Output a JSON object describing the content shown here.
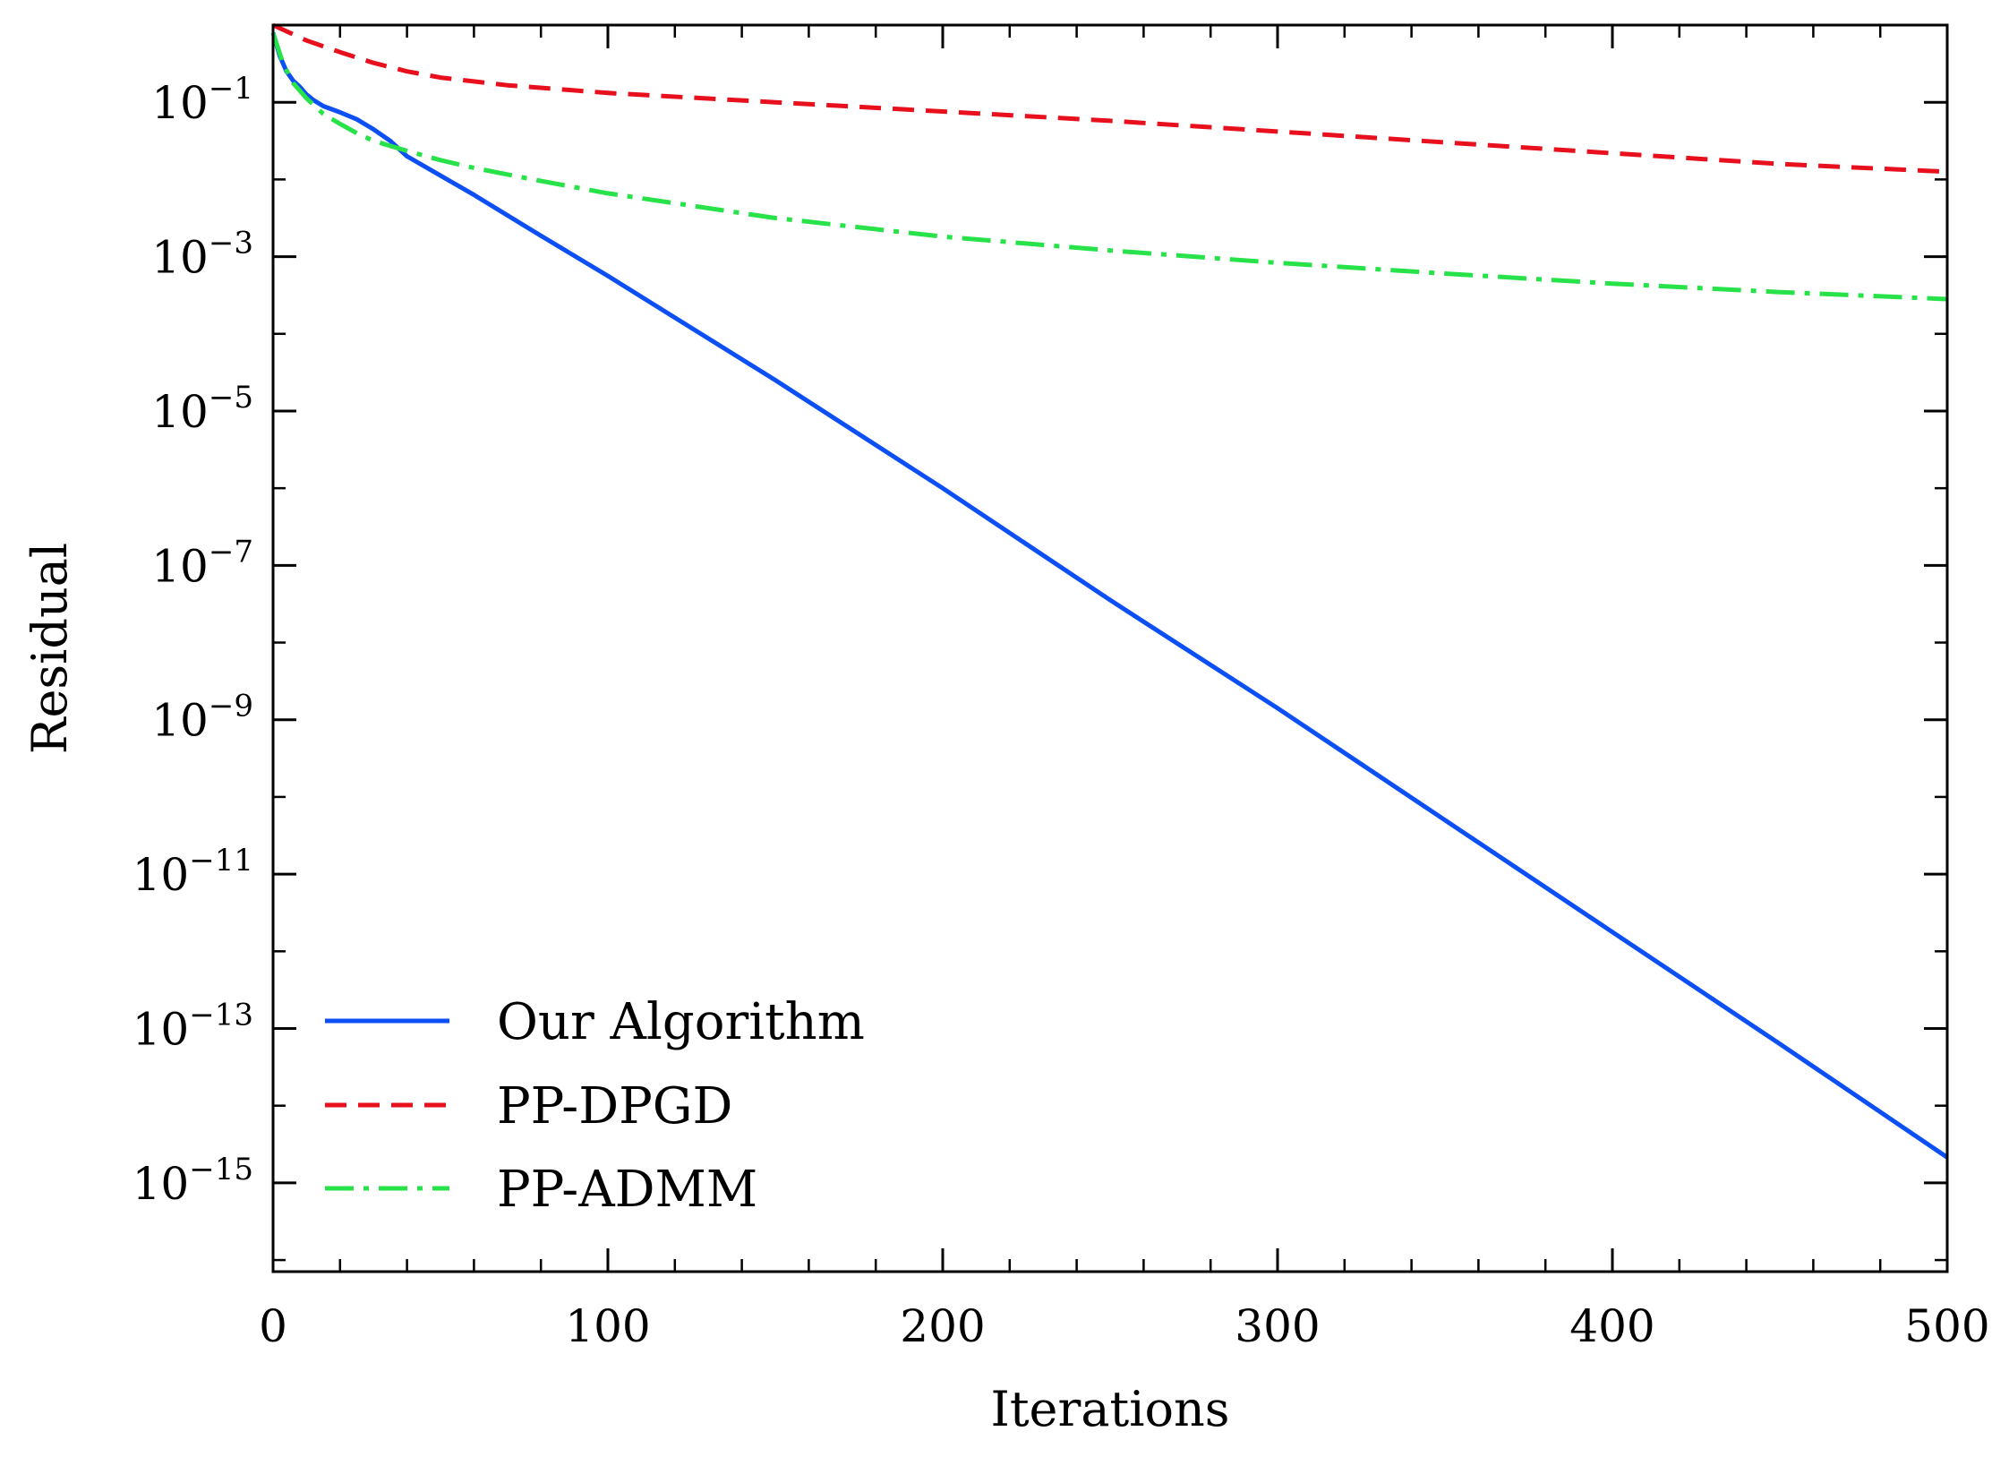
{
  "chart_data": {
    "type": "line",
    "title": "",
    "xlabel": "Iterations",
    "ylabel": "Residual",
    "xlim": [
      0,
      500
    ],
    "ylim_log10": [
      -16.15,
      0.0
    ],
    "y_scale": "log",
    "grid": false,
    "legend_position": "lower-left",
    "x_ticks": [
      "0",
      "100",
      "200",
      "300",
      "400",
      "500"
    ],
    "y_ticks": [
      {
        "base": "10",
        "exp": "−1",
        "log10": -1
      },
      {
        "base": "10",
        "exp": "−3",
        "log10": -3
      },
      {
        "base": "10",
        "exp": "−5",
        "log10": -5
      },
      {
        "base": "10",
        "exp": "−7",
        "log10": -7
      },
      {
        "base": "10",
        "exp": "−9",
        "log10": -9
      },
      {
        "base": "10",
        "exp": "−11",
        "log10": -11
      },
      {
        "base": "10",
        "exp": "−13",
        "log10": -13
      },
      {
        "base": "10",
        "exp": "−15",
        "log10": -15
      }
    ],
    "series": [
      {
        "name": "Our Algorithm",
        "color": "#0c4ff5",
        "style": "solid",
        "x": [
          0,
          2,
          4,
          6,
          8,
          10,
          12,
          15,
          20,
          25,
          30,
          35,
          40,
          50,
          60,
          80,
          100,
          150,
          200,
          250,
          300,
          350,
          400,
          450,
          500
        ],
        "log10_y": [
          -0.1,
          -0.4,
          -0.6,
          -0.72,
          -0.8,
          -0.9,
          -0.97,
          -1.05,
          -1.13,
          -1.22,
          -1.35,
          -1.5,
          -1.7,
          -1.95,
          -2.2,
          -2.73,
          -3.25,
          -4.6,
          -6.0,
          -7.45,
          -8.85,
          -10.3,
          -11.75,
          -13.2,
          -14.67
        ]
      },
      {
        "name": "PP-DPGD",
        "color": "#e8101d",
        "style": "dashed",
        "x": [
          0,
          5,
          10,
          20,
          30,
          40,
          50,
          70,
          100,
          150,
          200,
          250,
          300,
          350,
          400,
          450,
          500
        ],
        "log10_y": [
          0.0,
          -0.1,
          -0.2,
          -0.35,
          -0.49,
          -0.6,
          -0.68,
          -0.78,
          -0.88,
          -1.0,
          -1.12,
          -1.24,
          -1.38,
          -1.52,
          -1.66,
          -1.8,
          -1.9
        ]
      },
      {
        "name": "PP-ADMM",
        "color": "#28e24a",
        "style": "dashdot",
        "x": [
          0,
          3,
          6,
          10,
          15,
          20,
          25,
          30,
          40,
          50,
          60,
          80,
          100,
          150,
          200,
          250,
          300,
          350,
          400,
          450,
          500
        ],
        "log10_y": [
          -0.1,
          -0.5,
          -0.75,
          -0.95,
          -1.15,
          -1.28,
          -1.4,
          -1.5,
          -1.63,
          -1.75,
          -1.85,
          -2.02,
          -2.18,
          -2.5,
          -2.74,
          -2.92,
          -3.08,
          -3.22,
          -3.35,
          -3.46,
          -3.55
        ]
      }
    ]
  }
}
